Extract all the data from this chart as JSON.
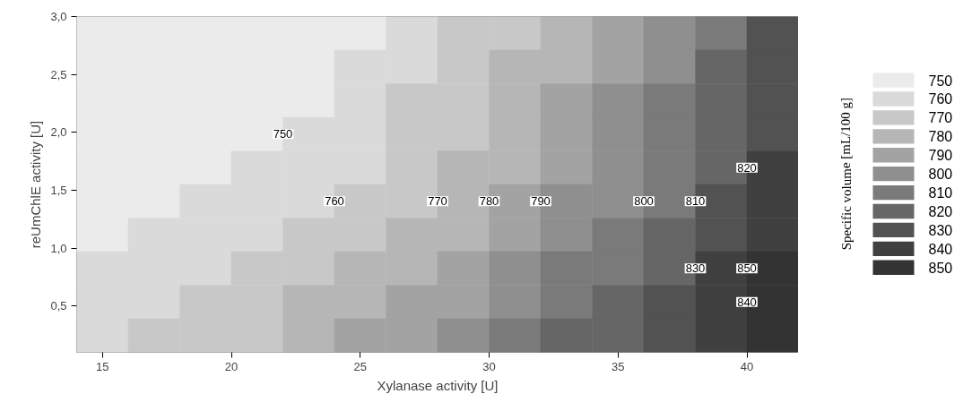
{
  "chart_data": {
    "type": "heatmap",
    "xlabel": "Xylanase activity [U]",
    "ylabel": "reUmChlE activity [U]",
    "clabel": "Specific volume [mL/100 g]",
    "x": [
      15,
      17,
      19,
      21,
      23,
      25,
      27,
      29,
      31,
      33,
      35,
      37,
      39,
      41
    ],
    "y": [
      2.855,
      2.565,
      2.275,
      1.985,
      1.695,
      1.405,
      1.115,
      0.825,
      0.535,
      0.245
    ],
    "xlim": [
      14,
      42
    ],
    "xticks": [
      15,
      20,
      25,
      30,
      35,
      40
    ],
    "ylim": [
      0.1,
      3.0
    ],
    "yticks": [
      {
        "value": 0.5,
        "label": "0,5"
      },
      {
        "value": 1.0,
        "label": "1,0"
      },
      {
        "value": 1.5,
        "label": "1,5"
      },
      {
        "value": 2.0,
        "label": "2,0"
      },
      {
        "value": 2.5,
        "label": "2,5"
      },
      {
        "value": 3.0,
        "label": "3,0"
      }
    ],
    "cticks": [
      750,
      760,
      770,
      780,
      790,
      800,
      810,
      820,
      830,
      840,
      850
    ],
    "colors": [
      "#ebebeb",
      "#dadada",
      "#c8c8c8",
      "#b6b6b6",
      "#a3a3a3",
      "#8f8f8f",
      "#7a7a7a",
      "#666666",
      "#525252",
      "#404040",
      "#333333"
    ],
    "cells": [
      [
        750,
        750,
        750,
        750,
        750,
        750,
        760,
        770,
        770,
        780,
        790,
        800,
        810,
        830
      ],
      [
        750,
        750,
        750,
        750,
        750,
        760,
        760,
        770,
        780,
        780,
        790,
        800,
        820,
        830
      ],
      [
        750,
        750,
        750,
        750,
        750,
        760,
        770,
        770,
        780,
        790,
        800,
        810,
        820,
        830
      ],
      [
        750,
        750,
        750,
        750,
        760,
        760,
        770,
        770,
        780,
        790,
        800,
        810,
        820,
        830
      ],
      [
        750,
        750,
        750,
        760,
        760,
        760,
        770,
        780,
        780,
        790,
        800,
        810,
        820,
        840
      ],
      [
        750,
        750,
        760,
        760,
        760,
        770,
        770,
        780,
        790,
        800,
        800,
        810,
        830,
        840
      ],
      [
        750,
        760,
        760,
        760,
        770,
        770,
        780,
        780,
        790,
        800,
        810,
        820,
        830,
        840
      ],
      [
        760,
        760,
        760,
        770,
        770,
        780,
        780,
        790,
        800,
        810,
        810,
        820,
        840,
        850
      ],
      [
        760,
        760,
        770,
        770,
        780,
        780,
        790,
        790,
        800,
        810,
        820,
        830,
        840,
        850
      ],
      [
        760,
        770,
        770,
        770,
        780,
        790,
        790,
        800,
        810,
        820,
        820,
        830,
        840,
        850
      ]
    ],
    "annotations": [
      "750",
      "760",
      "770",
      "780",
      "790",
      "800",
      "810",
      "820",
      "830",
      "840",
      "850"
    ],
    "grid": false
  }
}
